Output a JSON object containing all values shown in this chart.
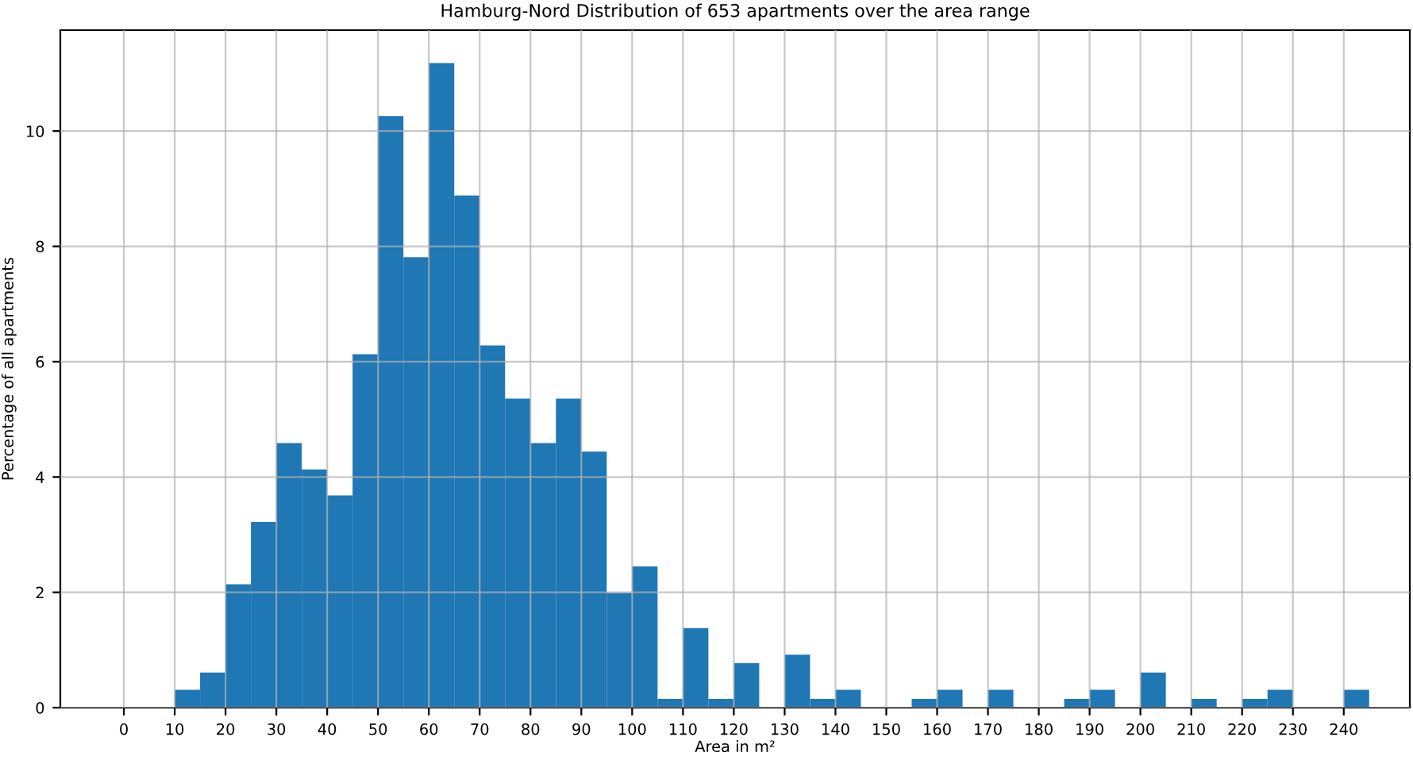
{
  "chart_data": {
    "type": "histogram",
    "title": "Hamburg-Nord Distribution of 653 apartments over the area range",
    "xlabel": "Area in m²",
    "ylabel": "Percentage of all apartments",
    "bins": [
      10,
      15,
      20,
      25,
      30,
      35,
      40,
      45,
      50,
      55,
      60,
      65,
      70,
      75,
      80,
      85,
      90,
      95,
      100,
      105,
      110,
      115,
      120,
      125,
      130,
      135,
      140,
      145,
      150,
      155,
      160,
      165,
      170,
      175,
      180,
      185,
      190,
      195,
      200,
      205,
      210,
      215,
      220,
      225,
      230,
      235,
      240,
      245
    ],
    "values": [
      0.31,
      0.61,
      2.14,
      3.22,
      4.59,
      4.13,
      3.68,
      6.13,
      10.26,
      7.81,
      11.18,
      8.88,
      6.28,
      5.36,
      4.59,
      5.36,
      4.44,
      1.99,
      2.45,
      0.15,
      1.38,
      0.15,
      0.77,
      0,
      0.92,
      0.15,
      0.31,
      0,
      0,
      0.15,
      0.31,
      0,
      0.31,
      0,
      0,
      0.15,
      0.31,
      0,
      0.61,
      0,
      0.15,
      0,
      0.15,
      0.31,
      0,
      0,
      0.31
    ],
    "color": "#1f77b4",
    "xlim": [
      -12.5,
      253
    ],
    "ylim": [
      0,
      11.75
    ],
    "xticks": [
      0,
      10,
      20,
      30,
      40,
      50,
      60,
      70,
      80,
      90,
      100,
      110,
      120,
      130,
      140,
      150,
      160,
      170,
      180,
      190,
      200,
      210,
      220,
      230,
      240
    ],
    "yticks": [
      0,
      2,
      4,
      6,
      8,
      10
    ],
    "grid": true
  }
}
